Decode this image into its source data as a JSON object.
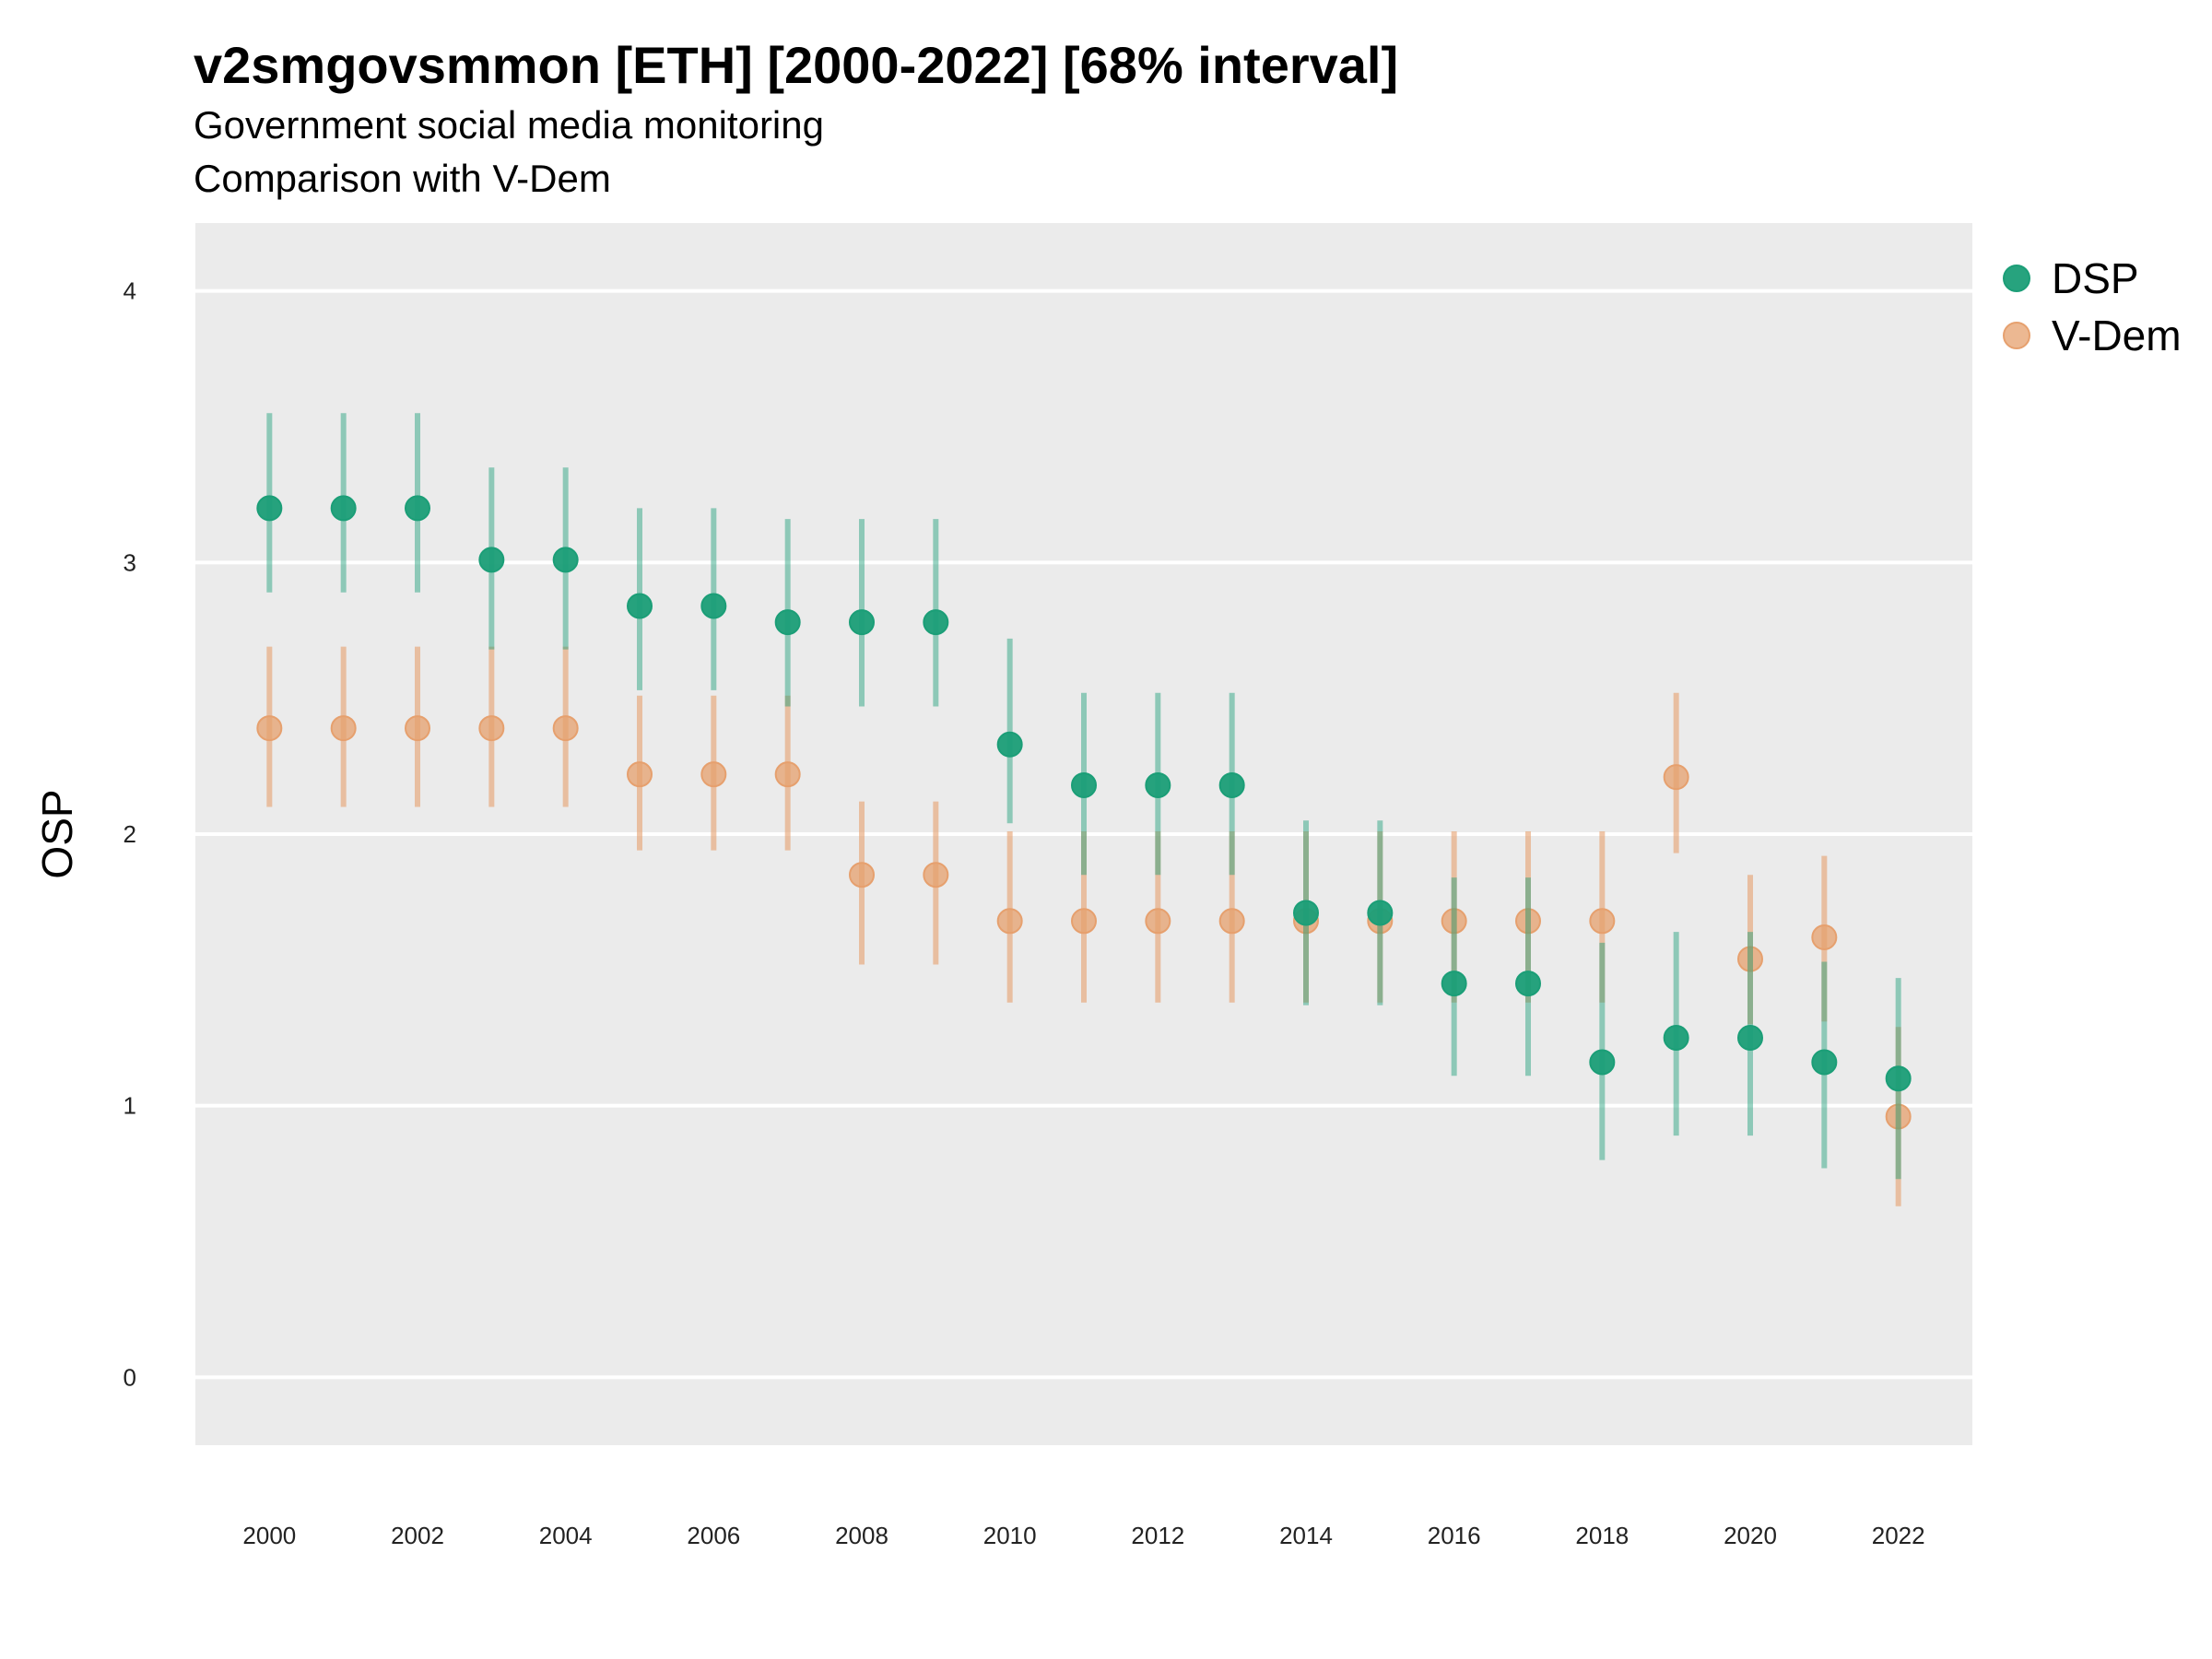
{
  "header": {
    "title": "v2smgovsmmon [ETH] [2000-2022] [68% interval]",
    "subtitle1": "Government social media monitoring",
    "subtitle2": "Comparison with V-Dem"
  },
  "chart_data": {
    "type": "scatter",
    "title": "v2smgovsmmon [ETH] [2000-2022] [68% interval]",
    "xlabel": "",
    "ylabel": "OSP",
    "xlim": [
      1999.0,
      2023.0
    ],
    "ylim": [
      -0.25,
      4.25
    ],
    "x_ticks": [
      2000,
      2002,
      2004,
      2006,
      2008,
      2010,
      2012,
      2014,
      2016,
      2018,
      2020,
      2022
    ],
    "y_ticks": [
      0,
      1,
      2,
      3,
      4
    ],
    "grid": true,
    "legend_position": "top-right",
    "colors": {
      "DSP": "#1b9e77",
      "V-Dem": "#e6a06e",
      "panel": "#ebebeb",
      "grid": "#ffffff"
    },
    "x": [
      2000,
      2001,
      2002,
      2003,
      2004,
      2005,
      2006,
      2007,
      2008,
      2009,
      2010,
      2011,
      2012,
      2013,
      2014,
      2015,
      2016,
      2017,
      2018,
      2019,
      2020,
      2021,
      2022
    ],
    "series": [
      {
        "name": "DSP",
        "values": [
          3.2,
          3.2,
          3.2,
          3.01,
          3.01,
          2.84,
          2.84,
          2.78,
          2.78,
          2.78,
          2.33,
          2.18,
          2.18,
          2.18,
          1.71,
          1.71,
          1.45,
          1.45,
          1.16,
          1.25,
          1.25,
          1.16,
          1.1
        ],
        "lower": [
          2.89,
          2.89,
          2.89,
          2.68,
          2.68,
          2.53,
          2.53,
          2.47,
          2.47,
          2.47,
          2.04,
          1.85,
          1.85,
          1.85,
          1.37,
          1.37,
          1.11,
          1.11,
          0.8,
          0.89,
          0.89,
          0.77,
          0.73
        ],
        "upper": [
          3.55,
          3.55,
          3.55,
          3.35,
          3.35,
          3.2,
          3.2,
          3.16,
          3.16,
          3.16,
          2.72,
          2.52,
          2.52,
          2.52,
          2.05,
          2.05,
          1.84,
          1.84,
          1.6,
          1.64,
          1.64,
          1.53,
          1.47
        ]
      },
      {
        "name": "V-Dem",
        "values": [
          2.39,
          2.39,
          2.39,
          2.39,
          2.39,
          2.22,
          2.22,
          2.22,
          1.85,
          1.85,
          1.68,
          1.68,
          1.68,
          1.68,
          1.68,
          1.68,
          1.68,
          1.68,
          1.68,
          2.21,
          1.54,
          1.62,
          0.96
        ],
        "lower": [
          2.1,
          2.1,
          2.1,
          2.1,
          2.1,
          1.94,
          1.94,
          1.94,
          1.52,
          1.52,
          1.38,
          1.38,
          1.38,
          1.38,
          1.38,
          1.38,
          1.38,
          1.38,
          1.38,
          1.93,
          1.3,
          1.31,
          0.63
        ],
        "upper": [
          2.69,
          2.69,
          2.69,
          2.69,
          2.69,
          2.51,
          2.51,
          2.51,
          2.12,
          2.12,
          2.01,
          2.01,
          2.01,
          2.01,
          2.01,
          2.01,
          2.01,
          2.01,
          2.01,
          2.52,
          1.85,
          1.92,
          1.29
        ]
      }
    ]
  }
}
